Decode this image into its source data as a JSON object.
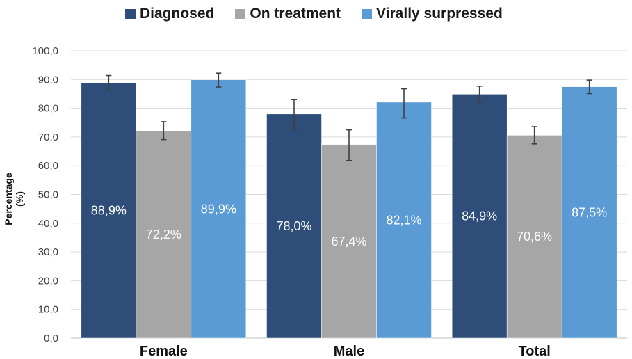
{
  "chart_data": {
    "type": "bar",
    "title": "",
    "xlabel": "",
    "ylabel": "Percentage (%)",
    "categories": [
      "Female",
      "Male",
      "Total"
    ],
    "series": [
      {
        "name": "Diagnosed",
        "color": "#2e4d78",
        "values": [
          88.9,
          78.0,
          84.9
        ],
        "labels": [
          "88,9%",
          "78,0%",
          "84,9%"
        ],
        "error_low": [
          86.3,
          72.6,
          82.0
        ],
        "error_high": [
          91.4,
          83.0,
          87.7
        ]
      },
      {
        "name": "On treatment",
        "color": "#a6a6a6",
        "values": [
          72.2,
          67.4,
          70.6
        ],
        "labels": [
          "72,2%",
          "67,4%",
          "70,6%"
        ],
        "error_low": [
          69.1,
          61.8,
          67.6
        ],
        "error_high": [
          75.3,
          72.5,
          73.6
        ]
      },
      {
        "name": "Virally surpressed",
        "color": "#5b9bd5",
        "values": [
          89.9,
          82.1,
          87.5
        ],
        "labels": [
          "89,9%",
          "82,1%",
          "87,5%"
        ],
        "error_low": [
          87.4,
          76.6,
          85.1
        ],
        "error_high": [
          92.2,
          86.8,
          89.8
        ]
      }
    ],
    "ylim": [
      0,
      100
    ],
    "yticks": [
      "0,0",
      "10,0",
      "20,0",
      "30,0",
      "40,0",
      "50,0",
      "60,0",
      "70,0",
      "80,0",
      "90,0",
      "100,0"
    ],
    "grid": true,
    "legend": "top"
  }
}
